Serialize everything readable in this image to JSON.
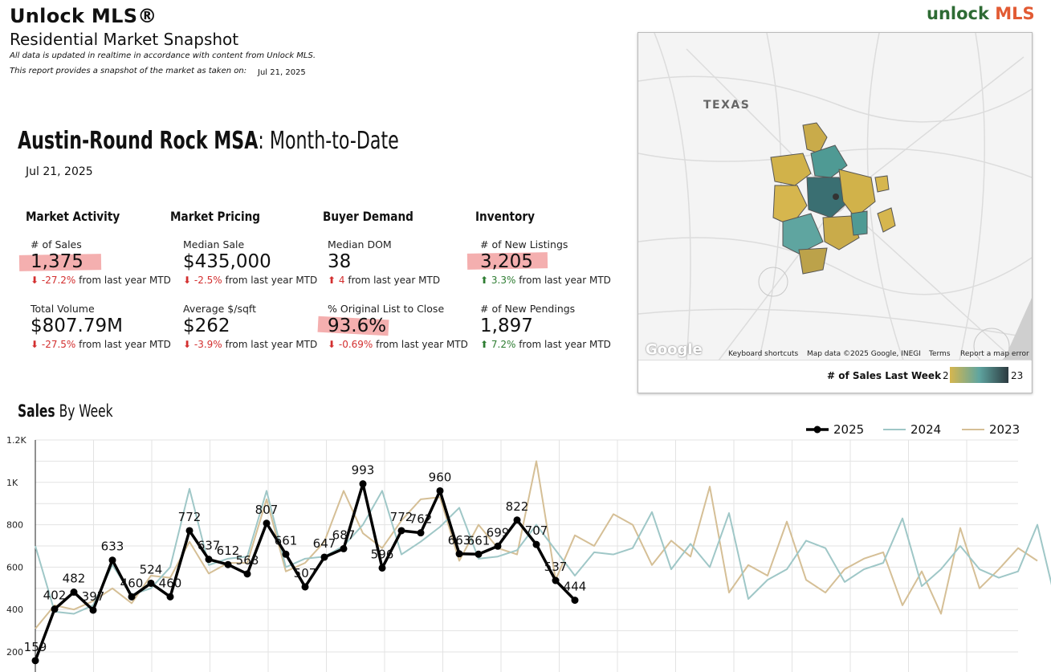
{
  "header": {
    "title": "Unlock MLS®",
    "subtitle": "Residential Market Snapshot",
    "note1": "All data is updated in realtime in accordance with content from Unlock MLS.",
    "note2": "This report provides a snapshot of the market as taken on:",
    "snapshot_date": "Jul 21, 2025",
    "logo_part1": "unlock",
    "logo_part2": "MLS"
  },
  "report": {
    "area": "Austin-Round Rock MSA",
    "period": ": Month-to-Date",
    "date": "Jul 21, 2025"
  },
  "categories": {
    "activity": "Market Activity",
    "pricing": "Market Pricing",
    "demand": "Buyer Demand",
    "inventory": "Inventory"
  },
  "change_suffix": "from last year MTD",
  "metrics": {
    "sales": {
      "label": "# of Sales",
      "value": "1,375",
      "change": "-27.2%"
    },
    "volume": {
      "label": "Total Volume",
      "value": "$807.79M",
      "change": "-27.5%"
    },
    "median_sale": {
      "label": "Median Sale",
      "value": "$435,000",
      "change": "-2.5%"
    },
    "price_sqft": {
      "label": "Average $/sqft",
      "value": "$262",
      "change": "-3.9%"
    },
    "dom": {
      "label": "Median DOM",
      "value": "38",
      "change": "4"
    },
    "list_to_close": {
      "label": "% Original List to Close",
      "value": "93.6%",
      "change": "-0.69%"
    },
    "new_listings": {
      "label": "# of New Listings",
      "value": "3,205",
      "change": "3.3%"
    },
    "new_pendings": {
      "label": "# of New Pendings",
      "value": "1,897",
      "change": "7.2%"
    }
  },
  "map": {
    "region_label": "TEXAS",
    "google": "Google",
    "shortcuts": "Keyboard shortcuts",
    "mapdata": "Map data ©2025 Google, INEGI",
    "terms": "Terms",
    "report_error": "Report a map error",
    "legend_label": "# of Sales Last Week",
    "legend_min": "2",
    "legend_max": "23",
    "colors": {
      "low": "#d6b64e",
      "mid": "#5fa5a0",
      "high": "#2c3a40"
    }
  },
  "sales_chart": {
    "title_bold": "Sales",
    "title_rest": " By Week"
  },
  "chart_data": {
    "type": "line",
    "title": "Sales By Week",
    "y_ticks": [
      "200",
      "400",
      "600",
      "800",
      "1K",
      "1.2K"
    ],
    "ylim": [
      200,
      1200
    ],
    "grid": true,
    "legend_placement": "top-right",
    "series": [
      {
        "name": "2025",
        "color": "#000000",
        "values": [
          159,
          402,
          482,
          397,
          633,
          460,
          524,
          460,
          772,
          637,
          612,
          568,
          807,
          661,
          507,
          647,
          687,
          993,
          596,
          772,
          762,
          960,
          663,
          661,
          699,
          822,
          707,
          537,
          444
        ]
      },
      {
        "name": "2024",
        "color": "#9fc7c7",
        "values": [
          700,
          390,
          380,
          420,
          610,
          470,
          500,
          600,
          970,
          610,
          640,
          650,
          960,
          600,
          640,
          650,
          700,
          800,
          960,
          660,
          720,
          790,
          880,
          640,
          650,
          680,
          800,
          680,
          560,
          670,
          660,
          690,
          860,
          590,
          710,
          600,
          855,
          450,
          540,
          590,
          725,
          690,
          530,
          590,
          620,
          830,
          510,
          590,
          700,
          590,
          550,
          580,
          800,
          420
        ]
      },
      {
        "name": "2023",
        "color": "#d5bf96",
        "values": [
          310,
          420,
          400,
          440,
          500,
          430,
          560,
          550,
          720,
          570,
          620,
          620,
          920,
          580,
          620,
          720,
          960,
          760,
          690,
          820,
          920,
          930,
          630,
          800,
          690,
          660,
          1100,
          540,
          750,
          700,
          850,
          800,
          610,
          725,
          650,
          980,
          480,
          610,
          560,
          815,
          540,
          480,
          590,
          640,
          670,
          420,
          580,
          380,
          785,
          500,
          590,
          690,
          630
        ]
      }
    ]
  }
}
